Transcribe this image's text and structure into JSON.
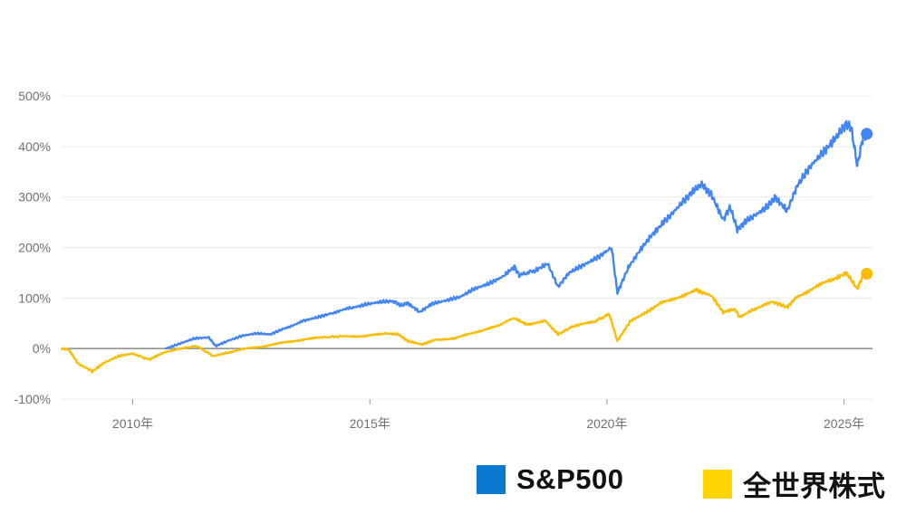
{
  "chart_data": {
    "type": "line",
    "y_unit": "%",
    "ylim": [
      -100,
      500
    ],
    "y_ticks": [
      {
        "value": 500,
        "label": "500%"
      },
      {
        "value": 400,
        "label": "400%"
      },
      {
        "value": 300,
        "label": "300%"
      },
      {
        "value": 200,
        "label": "200%"
      },
      {
        "value": 100,
        "label": "100%"
      },
      {
        "value": 0,
        "label": "0%"
      },
      {
        "value": -100,
        "label": "-100%"
      }
    ],
    "xlim": [
      2008.5,
      2025.6
    ],
    "x_ticks": [
      {
        "value": 2010,
        "label": "2010年"
      },
      {
        "value": 2015,
        "label": "2015年"
      },
      {
        "value": 2020,
        "label": "2020年"
      },
      {
        "value": 2025,
        "label": "2025年"
      }
    ],
    "grid": true,
    "legend_position": "bottom-right",
    "series": [
      {
        "name": "S&P500",
        "color": "#4285f4",
        "legend_color": "#0a7ad1",
        "points": [
          [
            2010.7,
            0
          ],
          [
            2011.0,
            10
          ],
          [
            2011.3,
            20
          ],
          [
            2011.6,
            22
          ],
          [
            2011.75,
            5
          ],
          [
            2012.0,
            15
          ],
          [
            2012.3,
            25
          ],
          [
            2012.6,
            30
          ],
          [
            2012.9,
            28
          ],
          [
            2013.2,
            40
          ],
          [
            2013.6,
            55
          ],
          [
            2013.9,
            62
          ],
          [
            2014.2,
            70
          ],
          [
            2014.6,
            80
          ],
          [
            2014.9,
            87
          ],
          [
            2015.2,
            92
          ],
          [
            2015.5,
            94
          ],
          [
            2015.65,
            85
          ],
          [
            2015.8,
            90
          ],
          [
            2016.05,
            72
          ],
          [
            2016.3,
            88
          ],
          [
            2016.6,
            95
          ],
          [
            2016.9,
            102
          ],
          [
            2017.2,
            118
          ],
          [
            2017.5,
            128
          ],
          [
            2017.8,
            142
          ],
          [
            2018.05,
            162
          ],
          [
            2018.15,
            145
          ],
          [
            2018.5,
            155
          ],
          [
            2018.75,
            168
          ],
          [
            2018.97,
            122
          ],
          [
            2019.2,
            150
          ],
          [
            2019.5,
            165
          ],
          [
            2019.8,
            180
          ],
          [
            2020.1,
            200
          ],
          [
            2020.22,
            110
          ],
          [
            2020.45,
            160
          ],
          [
            2020.7,
            195
          ],
          [
            2020.95,
            225
          ],
          [
            2021.2,
            250
          ],
          [
            2021.5,
            280
          ],
          [
            2021.8,
            310
          ],
          [
            2022.0,
            325
          ],
          [
            2022.2,
            305
          ],
          [
            2022.45,
            255
          ],
          [
            2022.6,
            280
          ],
          [
            2022.75,
            235
          ],
          [
            2022.9,
            250
          ],
          [
            2023.1,
            262
          ],
          [
            2023.4,
            282
          ],
          [
            2023.55,
            300
          ],
          [
            2023.8,
            272
          ],
          [
            2024.0,
            320
          ],
          [
            2024.3,
            362
          ],
          [
            2024.6,
            392
          ],
          [
            2024.85,
            420
          ],
          [
            2025.05,
            445
          ],
          [
            2025.15,
            438
          ],
          [
            2025.28,
            362
          ],
          [
            2025.4,
            418
          ],
          [
            2025.48,
            425
          ]
        ]
      },
      {
        "name": "全世界株式",
        "color": "#fbbc04",
        "legend_color": "#ffd400",
        "points": [
          [
            2008.5,
            0
          ],
          [
            2008.65,
            -2
          ],
          [
            2008.85,
            -30
          ],
          [
            2009.15,
            -45
          ],
          [
            2009.4,
            -28
          ],
          [
            2009.7,
            -15
          ],
          [
            2010.0,
            -10
          ],
          [
            2010.35,
            -22
          ],
          [
            2010.6,
            -10
          ],
          [
            2011.0,
            0
          ],
          [
            2011.35,
            5
          ],
          [
            2011.7,
            -15
          ],
          [
            2012.0,
            -8
          ],
          [
            2012.4,
            0
          ],
          [
            2012.8,
            5
          ],
          [
            2013.2,
            12
          ],
          [
            2013.6,
            18
          ],
          [
            2014.0,
            22
          ],
          [
            2014.5,
            25
          ],
          [
            2014.9,
            24
          ],
          [
            2015.3,
            30
          ],
          [
            2015.6,
            28
          ],
          [
            2015.8,
            15
          ],
          [
            2016.1,
            8
          ],
          [
            2016.4,
            18
          ],
          [
            2016.8,
            20
          ],
          [
            2017.2,
            32
          ],
          [
            2017.6,
            42
          ],
          [
            2018.05,
            60
          ],
          [
            2018.3,
            48
          ],
          [
            2018.7,
            55
          ],
          [
            2018.97,
            28
          ],
          [
            2019.3,
            45
          ],
          [
            2019.7,
            52
          ],
          [
            2020.05,
            68
          ],
          [
            2020.22,
            15
          ],
          [
            2020.5,
            55
          ],
          [
            2020.8,
            70
          ],
          [
            2021.1,
            88
          ],
          [
            2021.5,
            102
          ],
          [
            2021.9,
            115
          ],
          [
            2022.2,
            105
          ],
          [
            2022.45,
            72
          ],
          [
            2022.7,
            78
          ],
          [
            2022.8,
            62
          ],
          [
            2023.1,
            78
          ],
          [
            2023.5,
            92
          ],
          [
            2023.8,
            82
          ],
          [
            2024.0,
            102
          ],
          [
            2024.4,
            122
          ],
          [
            2024.8,
            138
          ],
          [
            2025.05,
            150
          ],
          [
            2025.28,
            118
          ],
          [
            2025.4,
            145
          ],
          [
            2025.48,
            148
          ]
        ]
      }
    ]
  },
  "legend": [
    {
      "label": "S&P500",
      "color": "#0a7ad1"
    },
    {
      "label": "全世界株式",
      "color": "#ffd400"
    }
  ]
}
